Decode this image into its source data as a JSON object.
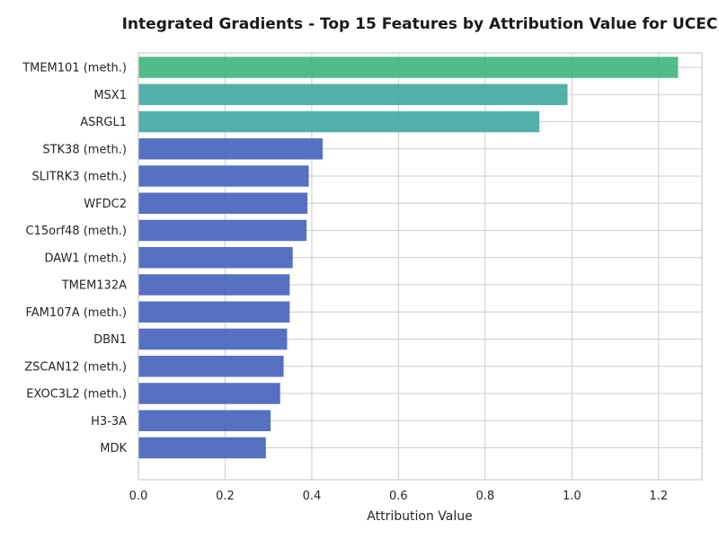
{
  "chart_data": {
    "type": "bar",
    "orientation": "horizontal",
    "title": "Integrated Gradients - Top 15 Features by Attribution Value for UCEC",
    "xlabel": "Attribution Value",
    "ylabel": "",
    "xlim": [
      0.0,
      1.3
    ],
    "xticks": [
      "0.0",
      "0.2",
      "0.4",
      "0.6",
      "0.8",
      "1.0",
      "1.2"
    ],
    "grid": true,
    "categories": [
      "TMEM101 (meth.)",
      "MSX1",
      "ASRGL1",
      "STK38 (meth.)",
      "SLITRK3 (meth.)",
      "WFDC2",
      "C15orf48 (meth.)",
      "DAW1 (meth.)",
      "TMEM132A",
      "FAM107A (meth.)",
      "DBN1",
      "ZSCAN12 (meth.)",
      "EXOC3L2 (meth.)",
      "H3-3A",
      "MDK"
    ],
    "values": [
      1.245,
      0.99,
      0.925,
      0.425,
      0.393,
      0.39,
      0.388,
      0.356,
      0.349,
      0.349,
      0.343,
      0.335,
      0.327,
      0.305,
      0.294
    ],
    "colors": [
      "#3fb57b",
      "#3fa89e",
      "#3fa89e",
      "#4461bb",
      "#4461bb",
      "#4461bb",
      "#4461bb",
      "#4461bb",
      "#4461bb",
      "#4461bb",
      "#4461bb",
      "#4461bb",
      "#4461bb",
      "#4461bb",
      "#4461bb"
    ]
  }
}
